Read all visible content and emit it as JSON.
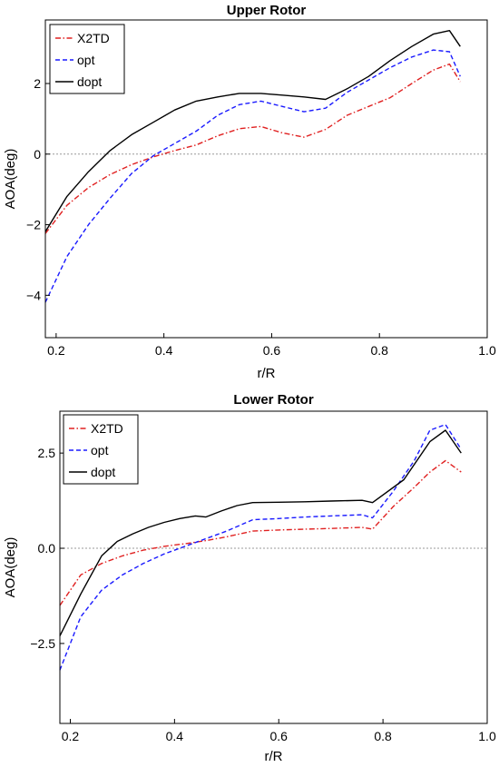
{
  "chart_data": [
    {
      "type": "line",
      "title": "Upper Rotor",
      "xlabel": "r/R",
      "ylabel": "AOA(deg)",
      "xlim": [
        0.18,
        1.0
      ],
      "ylim": [
        -5.2,
        3.8
      ],
      "xticks": [
        0.2,
        0.4,
        0.6,
        0.8,
        1.0
      ],
      "xtick_labels": [
        "0.2",
        "0.4",
        "0.6",
        "0.8",
        "1.0"
      ],
      "yticks": [
        -4,
        -2,
        0,
        2
      ],
      "ytick_labels": [
        "−4",
        "−2",
        "0",
        "2"
      ],
      "reference_line": {
        "y": 0,
        "style": "dotted",
        "color": "#999999"
      },
      "grid": false,
      "legend_position": "top-left",
      "series": [
        {
          "name": "X2TD",
          "color": "#e02020",
          "dash": "dashdot",
          "x": [
            0.18,
            0.22,
            0.26,
            0.3,
            0.34,
            0.38,
            0.42,
            0.46,
            0.5,
            0.54,
            0.58,
            0.62,
            0.66,
            0.7,
            0.74,
            0.78,
            0.82,
            0.86,
            0.9,
            0.93,
            0.95
          ],
          "y": [
            -2.25,
            -1.45,
            -0.95,
            -0.58,
            -0.3,
            -0.08,
            0.1,
            0.26,
            0.52,
            0.72,
            0.78,
            0.6,
            0.48,
            0.7,
            1.1,
            1.35,
            1.6,
            2.0,
            2.38,
            2.55,
            2.05
          ]
        },
        {
          "name": "opt",
          "color": "#1a1aff",
          "dash": "dashed",
          "x": [
            0.18,
            0.22,
            0.26,
            0.3,
            0.34,
            0.38,
            0.42,
            0.46,
            0.5,
            0.54,
            0.58,
            0.62,
            0.66,
            0.7,
            0.74,
            0.78,
            0.82,
            0.86,
            0.9,
            0.93,
            0.95
          ],
          "y": [
            -4.2,
            -2.9,
            -2.0,
            -1.25,
            -0.55,
            -0.05,
            0.3,
            0.65,
            1.1,
            1.4,
            1.5,
            1.35,
            1.2,
            1.3,
            1.75,
            2.1,
            2.45,
            2.75,
            2.95,
            2.9,
            2.2
          ]
        },
        {
          "name": "dopt",
          "color": "#000000",
          "dash": "solid",
          "x": [
            0.18,
            0.22,
            0.26,
            0.3,
            0.34,
            0.38,
            0.42,
            0.46,
            0.5,
            0.54,
            0.58,
            0.62,
            0.66,
            0.7,
            0.74,
            0.78,
            0.82,
            0.86,
            0.9,
            0.93,
            0.95
          ],
          "y": [
            -2.2,
            -1.2,
            -0.5,
            0.1,
            0.55,
            0.9,
            1.25,
            1.5,
            1.62,
            1.72,
            1.72,
            1.67,
            1.62,
            1.55,
            1.85,
            2.2,
            2.65,
            3.05,
            3.4,
            3.5,
            3.05
          ]
        }
      ]
    },
    {
      "type": "line",
      "title": "Lower Rotor",
      "xlabel": "r/R",
      "ylabel": "AOA(deg)",
      "xlim": [
        0.18,
        1.0
      ],
      "ylim": [
        -4.6,
        3.6
      ],
      "xticks": [
        0.2,
        0.4,
        0.6,
        0.8,
        1.0
      ],
      "xtick_labels": [
        "0.2",
        "0.4",
        "0.6",
        "0.8",
        "1.0"
      ],
      "yticks": [
        -2.5,
        0,
        2.5
      ],
      "ytick_labels": [
        "−2.5",
        "0.0",
        "2.5"
      ],
      "reference_line": {
        "y": 0,
        "style": "dotted",
        "color": "#999999"
      },
      "grid": false,
      "legend_position": "top-left",
      "series": [
        {
          "name": "X2TD",
          "color": "#e02020",
          "dash": "dashdot",
          "x": [
            0.18,
            0.22,
            0.26,
            0.3,
            0.34,
            0.38,
            0.42,
            0.46,
            0.5,
            0.55,
            0.6,
            0.65,
            0.7,
            0.76,
            0.78,
            0.82,
            0.86,
            0.89,
            0.92,
            0.95
          ],
          "y": [
            -1.5,
            -0.7,
            -0.4,
            -0.2,
            -0.05,
            0.05,
            0.12,
            0.2,
            0.3,
            0.45,
            0.48,
            0.5,
            0.52,
            0.55,
            0.5,
            1.1,
            1.6,
            2.0,
            2.3,
            2.0
          ]
        },
        {
          "name": "opt",
          "color": "#1a1aff",
          "dash": "dashed",
          "x": [
            0.18,
            0.22,
            0.26,
            0.3,
            0.34,
            0.38,
            0.42,
            0.46,
            0.5,
            0.55,
            0.6,
            0.65,
            0.7,
            0.76,
            0.78,
            0.82,
            0.86,
            0.89,
            0.92,
            0.95
          ],
          "y": [
            -3.2,
            -1.8,
            -1.1,
            -0.7,
            -0.4,
            -0.15,
            0.05,
            0.25,
            0.45,
            0.75,
            0.78,
            0.82,
            0.85,
            0.88,
            0.8,
            1.5,
            2.3,
            3.1,
            3.25,
            2.6
          ]
        },
        {
          "name": "dopt",
          "color": "#000000",
          "dash": "solid",
          "x": [
            0.18,
            0.22,
            0.26,
            0.29,
            0.32,
            0.35,
            0.38,
            0.41,
            0.44,
            0.46,
            0.49,
            0.52,
            0.55,
            0.6,
            0.65,
            0.7,
            0.76,
            0.78,
            0.84,
            0.89,
            0.92,
            0.95
          ],
          "y": [
            -2.3,
            -1.2,
            -0.2,
            0.18,
            0.38,
            0.55,
            0.68,
            0.78,
            0.85,
            0.82,
            0.98,
            1.12,
            1.2,
            1.21,
            1.22,
            1.24,
            1.26,
            1.2,
            1.8,
            2.8,
            3.1,
            2.5
          ]
        }
      ]
    }
  ]
}
